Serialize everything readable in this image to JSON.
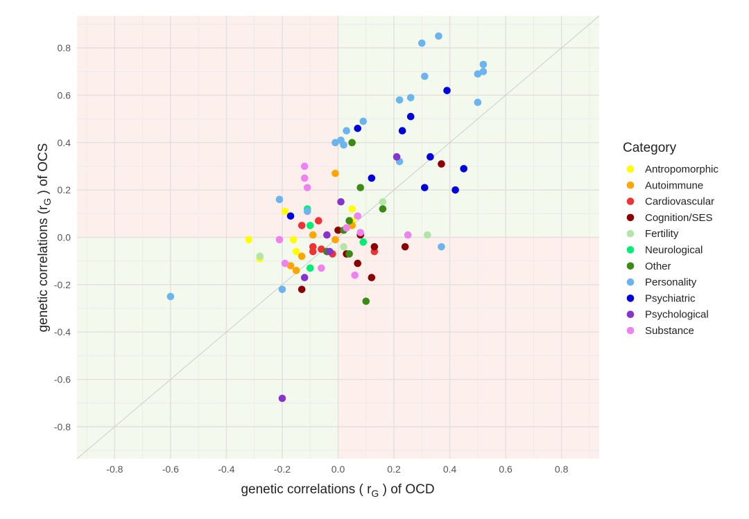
{
  "chart_data": {
    "type": "scatter",
    "xlabel_pre": "genetic correlations ( r",
    "xlabel_sub": "G",
    "xlabel_post": " ) of OCD",
    "ylabel_pre": "genetic correlations (r",
    "ylabel_sub": "G",
    "ylabel_post": " ) of OCS",
    "xlim": [
      -0.935,
      0.935
    ],
    "ylim": [
      -0.935,
      0.935
    ],
    "x_ticks": [
      -0.8,
      -0.6,
      -0.4,
      -0.2,
      0.0,
      0.2,
      0.4,
      0.6,
      0.8
    ],
    "y_ticks": [
      -0.8,
      -0.6,
      -0.4,
      -0.2,
      0.0,
      0.2,
      0.4,
      0.6,
      0.8
    ],
    "x_tick_labels": [
      "-0.8",
      "-0.6",
      "-0.4",
      "-0.2",
      "0.0",
      "0.2",
      "0.4",
      "0.6",
      "0.8"
    ],
    "y_tick_labels": [
      "-0.8",
      "-0.6",
      "-0.4",
      "-0.2",
      "0.0",
      "0.2",
      "0.4",
      "0.6",
      "0.8"
    ],
    "quadrant_colors": {
      "concordant": "#f4f9ee",
      "discordant": "#fdf0ec"
    },
    "reference_line": "y = x",
    "legend_title": "Category",
    "legend_position": "right",
    "series": [
      {
        "name": "Antropomorphic",
        "color": "#ffff00",
        "points": [
          [
            -0.32,
            -0.01
          ],
          [
            -0.28,
            -0.09
          ],
          [
            -0.19,
            0.11
          ],
          [
            -0.16,
            -0.01
          ],
          [
            -0.15,
            -0.06
          ],
          [
            0.05,
            0.12
          ],
          [
            0.05,
            0.07
          ]
        ]
      },
      {
        "name": "Autoimmune",
        "color": "#ffa500",
        "points": [
          [
            -0.17,
            -0.12
          ],
          [
            -0.15,
            -0.14
          ],
          [
            -0.13,
            -0.08
          ],
          [
            -0.09,
            0.01
          ],
          [
            -0.01,
            0.27
          ],
          [
            -0.01,
            -0.01
          ],
          [
            0.05,
            0.05
          ]
        ]
      },
      {
        "name": "Cardiovascular",
        "color": "#ee3333",
        "points": [
          [
            -0.13,
            0.05
          ],
          [
            -0.09,
            -0.04
          ],
          [
            -0.09,
            -0.06
          ],
          [
            -0.07,
            0.07
          ],
          [
            -0.06,
            -0.05
          ],
          [
            -0.02,
            -0.07
          ],
          [
            0.13,
            -0.06
          ]
        ]
      },
      {
        "name": "Cognition/SES",
        "color": "#8b0000",
        "points": [
          [
            -0.13,
            -0.22
          ],
          [
            -0.04,
            -0.06
          ],
          [
            0.0,
            0.03
          ],
          [
            0.03,
            -0.07
          ],
          [
            0.07,
            -0.11
          ],
          [
            0.08,
            0.01
          ],
          [
            0.12,
            -0.17
          ],
          [
            0.13,
            -0.04
          ],
          [
            0.24,
            -0.04
          ],
          [
            0.37,
            0.31
          ]
        ]
      },
      {
        "name": "Fertility",
        "color": "#b2e6a8",
        "points": [
          [
            -0.28,
            -0.08
          ],
          [
            0.02,
            -0.04
          ],
          [
            0.16,
            0.15
          ],
          [
            0.32,
            0.01
          ]
        ]
      },
      {
        "name": "Neurological",
        "color": "#00ee76",
        "points": [
          [
            -0.11,
            0.12
          ],
          [
            -0.1,
            0.05
          ],
          [
            -0.1,
            -0.13
          ],
          [
            0.09,
            -0.02
          ]
        ]
      },
      {
        "name": "Other",
        "color": "#3a8a14",
        "points": [
          [
            -0.04,
            -0.06
          ],
          [
            0.02,
            0.03
          ],
          [
            0.04,
            0.07
          ],
          [
            0.04,
            -0.07
          ],
          [
            0.05,
            0.4
          ],
          [
            0.08,
            0.21
          ],
          [
            0.1,
            -0.27
          ],
          [
            0.16,
            0.12
          ]
        ]
      },
      {
        "name": "Personality",
        "color": "#6cb4ee",
        "points": [
          [
            -0.6,
            -0.25
          ],
          [
            -0.21,
            0.16
          ],
          [
            -0.2,
            -0.22
          ],
          [
            -0.11,
            0.11
          ],
          [
            -0.01,
            0.4
          ],
          [
            0.01,
            0.41
          ],
          [
            0.02,
            0.39
          ],
          [
            0.03,
            0.45
          ],
          [
            0.09,
            0.49
          ],
          [
            0.22,
            0.58
          ],
          [
            0.22,
            0.32
          ],
          [
            0.26,
            0.59
          ],
          [
            0.3,
            0.82
          ],
          [
            0.31,
            0.68
          ],
          [
            0.36,
            0.85
          ],
          [
            0.37,
            -0.04
          ],
          [
            0.5,
            0.57
          ],
          [
            0.5,
            0.69
          ],
          [
            0.52,
            0.7
          ],
          [
            0.52,
            0.73
          ]
        ]
      },
      {
        "name": "Psychiatric",
        "color": "#0000dd",
        "points": [
          [
            -0.17,
            0.09
          ],
          [
            0.07,
            0.46
          ],
          [
            0.12,
            0.25
          ],
          [
            0.23,
            0.45
          ],
          [
            0.26,
            0.51
          ],
          [
            0.31,
            0.21
          ],
          [
            0.33,
            0.34
          ],
          [
            0.39,
            0.62
          ],
          [
            0.42,
            0.2
          ],
          [
            0.45,
            0.29
          ]
        ]
      },
      {
        "name": "Psychological",
        "color": "#8833cc",
        "points": [
          [
            -0.2,
            -0.68
          ],
          [
            -0.12,
            -0.17
          ],
          [
            -0.04,
            0.01
          ],
          [
            -0.03,
            -0.06
          ],
          [
            0.01,
            0.15
          ],
          [
            0.21,
            0.34
          ]
        ]
      },
      {
        "name": "Substance",
        "color": "#ee82ee",
        "points": [
          [
            -0.21,
            -0.01
          ],
          [
            -0.19,
            -0.11
          ],
          [
            -0.12,
            0.3
          ],
          [
            -0.12,
            0.25
          ],
          [
            -0.11,
            0.21
          ],
          [
            -0.06,
            -0.13
          ],
          [
            0.03,
            0.04
          ],
          [
            0.06,
            -0.16
          ],
          [
            0.07,
            0.09
          ],
          [
            0.08,
            0.02
          ],
          [
            0.25,
            0.01
          ]
        ]
      }
    ]
  }
}
